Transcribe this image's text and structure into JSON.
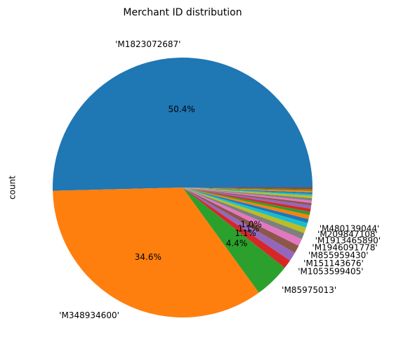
{
  "chart_data": {
    "type": "pie",
    "title": "Merchant ID distribution",
    "y_label": "count",
    "categories": [
      "'M1823072687'",
      "'M348934600'",
      "'M85975013'",
      "'M1053599405'",
      "'M151143676'",
      "'M855959430'",
      "'M1946091778'",
      "'M1913465890'",
      "'M209847108'",
      "'M480139044'",
      null,
      null,
      null,
      null,
      null,
      null,
      null,
      null,
      null,
      null,
      null,
      null,
      null,
      null
    ],
    "values": [
      50.4,
      34.6,
      4.4,
      1.1,
      1.1,
      1.0,
      0.9,
      0.8,
      0.7,
      0.6,
      0.5,
      0.5,
      0.4,
      0.4,
      0.4,
      0.3,
      0.3,
      0.3,
      0.3,
      0.2,
      0.2,
      0.2,
      0.2,
      0.2
    ],
    "value_labels": [
      "50.4%",
      "34.6%",
      "4.4%",
      "1.1%",
      "1.1%",
      "1.0%",
      null,
      null,
      null,
      null,
      null,
      null,
      null,
      null,
      null,
      null,
      null,
      null,
      null,
      null,
      null,
      null,
      null,
      null
    ],
    "colors": [
      "#1f77b4",
      "#ff7f0e",
      "#2ca02c",
      "#d62728",
      "#9467bd",
      "#8c564b",
      "#e377c2",
      "#7f7f7f",
      "#bcbd22",
      "#17becf"
    ]
  }
}
